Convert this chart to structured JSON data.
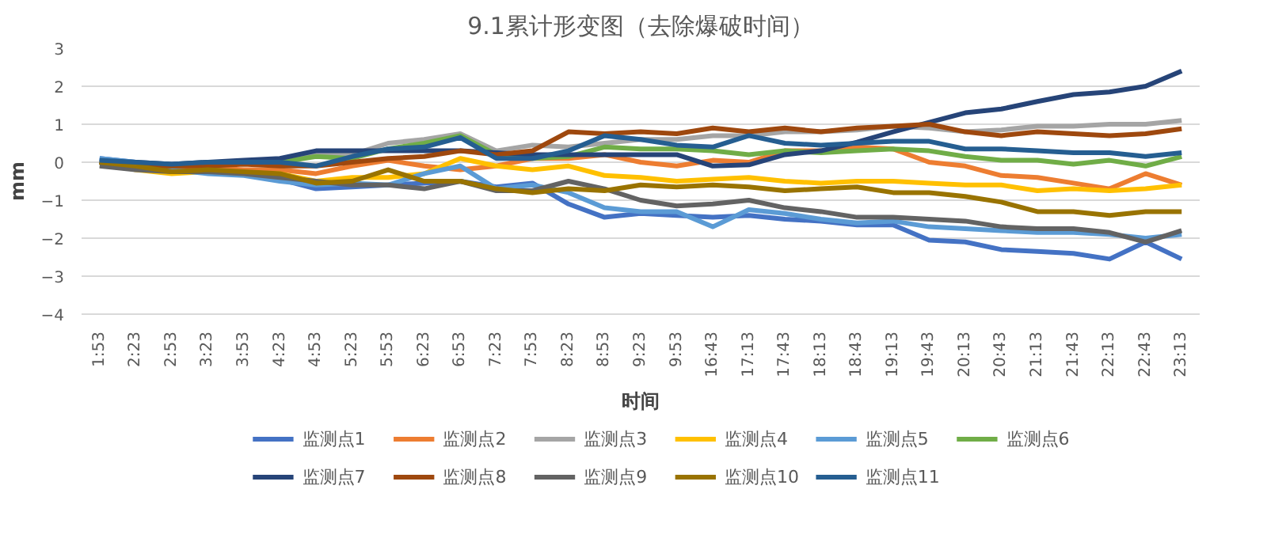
{
  "chart_data": {
    "type": "line",
    "title": "9.1累计形变图（去除爆破时间）",
    "xlabel": "时间",
    "ylabel": "mm",
    "categories": [
      "1:53",
      "2:23",
      "2:53",
      "3:23",
      "3:53",
      "4:23",
      "4:53",
      "5:23",
      "5:53",
      "6:23",
      "6:53",
      "7:23",
      "7:53",
      "8:23",
      "8:53",
      "9:23",
      "9:53",
      "16:43",
      "17:13",
      "17:43",
      "18:13",
      "18:43",
      "19:13",
      "19:43",
      "20:13",
      "20:43",
      "21:13",
      "21:43",
      "22:13",
      "22:43",
      "23:13"
    ],
    "ylim": [
      -4,
      3
    ],
    "yticks": [
      -4,
      -3,
      -2,
      -1,
      0,
      1,
      2,
      3
    ],
    "grid": "y",
    "legend": "bottom",
    "marker": "none",
    "line_style": "solid",
    "series": [
      {
        "name": "监测点1",
        "color": "#4472c4",
        "values": [
          0.1,
          0.0,
          -0.2,
          -0.2,
          -0.3,
          -0.45,
          -0.7,
          -0.65,
          -0.6,
          -0.55,
          -0.5,
          -0.65,
          -0.55,
          -1.1,
          -1.45,
          -1.35,
          -1.4,
          -1.45,
          -1.4,
          -1.5,
          -1.55,
          -1.65,
          -1.65,
          -2.05,
          -2.1,
          -2.3,
          -2.35,
          -2.4,
          -2.55,
          -2.1,
          -2.55
        ]
      },
      {
        "name": "监测点2",
        "color": "#ed7d31",
        "values": [
          null,
          null,
          -0.1,
          -0.15,
          -0.2,
          -0.2,
          -0.3,
          -0.1,
          0.05,
          -0.1,
          -0.2,
          -0.1,
          0.1,
          0.1,
          0.2,
          0.0,
          -0.1,
          0.05,
          0.0,
          0.3,
          0.3,
          0.4,
          0.35,
          0.0,
          -0.1,
          -0.35,
          -0.4,
          -0.55,
          -0.7,
          -0.3,
          -0.6
        ]
      },
      {
        "name": "监测点3",
        "color": "#a5a5a5",
        "values": [
          0.0,
          -0.05,
          -0.1,
          0.0,
          0.0,
          0.05,
          0.2,
          0.2,
          0.5,
          0.6,
          0.75,
          0.3,
          0.45,
          0.4,
          0.5,
          0.6,
          0.6,
          0.7,
          0.7,
          0.8,
          0.8,
          0.85,
          0.95,
          0.9,
          0.8,
          0.85,
          0.95,
          0.95,
          1.0,
          1.0,
          1.1
        ]
      },
      {
        "name": "监测点4",
        "color": "#ffc000",
        "values": [
          0.0,
          -0.2,
          -0.3,
          -0.25,
          -0.3,
          -0.3,
          -0.5,
          -0.4,
          -0.4,
          -0.3,
          0.1,
          -0.1,
          -0.2,
          -0.1,
          -0.35,
          -0.4,
          -0.5,
          -0.45,
          -0.4,
          -0.5,
          -0.55,
          -0.5,
          -0.5,
          -0.55,
          -0.6,
          -0.6,
          -0.75,
          -0.7,
          -0.75,
          -0.7,
          -0.6
        ]
      },
      {
        "name": "监测点5",
        "color": "#5b9bd5",
        "values": [
          0.1,
          0.0,
          -0.2,
          -0.3,
          -0.35,
          -0.5,
          -0.6,
          -0.55,
          -0.6,
          -0.3,
          -0.1,
          -0.7,
          -0.6,
          -0.8,
          -1.2,
          -1.3,
          -1.3,
          -1.7,
          -1.25,
          -1.35,
          -1.5,
          -1.6,
          -1.55,
          -1.7,
          -1.75,
          -1.8,
          -1.85,
          -1.85,
          -1.9,
          -2.0,
          -1.9
        ]
      },
      {
        "name": "监测点6",
        "color": "#70ad47",
        "values": [
          0.0,
          -0.1,
          -0.1,
          -0.05,
          0.0,
          0.0,
          0.15,
          0.1,
          0.35,
          0.5,
          0.7,
          0.2,
          0.1,
          0.15,
          0.4,
          0.35,
          0.35,
          0.3,
          0.2,
          0.3,
          0.25,
          0.3,
          0.35,
          0.3,
          0.15,
          0.05,
          0.05,
          -0.05,
          0.05,
          -0.1,
          0.15
        ]
      },
      {
        "name": "监测点7",
        "color": "#264478",
        "values": [
          0.0,
          0.0,
          -0.05,
          0.0,
          0.05,
          0.1,
          0.3,
          0.3,
          0.3,
          0.3,
          0.3,
          0.25,
          0.2,
          0.2,
          0.2,
          0.2,
          0.2,
          -0.1,
          -0.07,
          0.2,
          0.3,
          0.53,
          0.8,
          1.05,
          1.3,
          1.4,
          1.6,
          1.78,
          1.85,
          2.0,
          2.4
        ]
      },
      {
        "name": "监测点8",
        "color": "#9e480e",
        "values": [
          0.0,
          -0.1,
          -0.1,
          -0.1,
          -0.05,
          -0.1,
          -0.1,
          0.0,
          0.1,
          0.15,
          0.3,
          0.2,
          0.3,
          0.8,
          0.75,
          0.8,
          0.75,
          0.9,
          0.8,
          0.9,
          0.8,
          0.9,
          0.95,
          1.0,
          0.8,
          0.7,
          0.8,
          0.75,
          0.7,
          0.75,
          0.88
        ]
      },
      {
        "name": "监测点9",
        "color": "#636363",
        "values": [
          -0.1,
          -0.2,
          -0.25,
          -0.25,
          -0.3,
          -0.4,
          -0.5,
          -0.6,
          -0.6,
          -0.7,
          -0.5,
          -0.75,
          -0.75,
          -0.5,
          -0.7,
          -1.0,
          -1.15,
          -1.1,
          -1.0,
          -1.2,
          -1.3,
          -1.45,
          -1.45,
          -1.5,
          -1.55,
          -1.7,
          -1.75,
          -1.75,
          -1.85,
          -2.1,
          -1.8
        ]
      },
      {
        "name": "监测点10",
        "color": "#997300",
        "values": [
          0.0,
          -0.1,
          -0.25,
          -0.2,
          -0.25,
          -0.3,
          -0.55,
          -0.5,
          -0.2,
          -0.5,
          -0.5,
          -0.7,
          -0.8,
          -0.7,
          -0.75,
          -0.6,
          -0.65,
          -0.6,
          -0.65,
          -0.75,
          -0.7,
          -0.65,
          -0.8,
          -0.8,
          -0.9,
          -1.05,
          -1.3,
          -1.3,
          -1.4,
          -1.3,
          -1.3
        ]
      },
      {
        "name": "监测点11",
        "color": "#255e91",
        "values": [
          0.05,
          0.0,
          -0.05,
          0.0,
          0.0,
          0.0,
          -0.1,
          0.15,
          0.35,
          0.4,
          0.65,
          0.1,
          0.1,
          0.3,
          0.7,
          0.6,
          0.45,
          0.4,
          0.7,
          0.5,
          0.45,
          0.5,
          0.55,
          0.55,
          0.35,
          0.35,
          0.3,
          0.25,
          0.25,
          0.15,
          0.25
        ]
      }
    ]
  }
}
